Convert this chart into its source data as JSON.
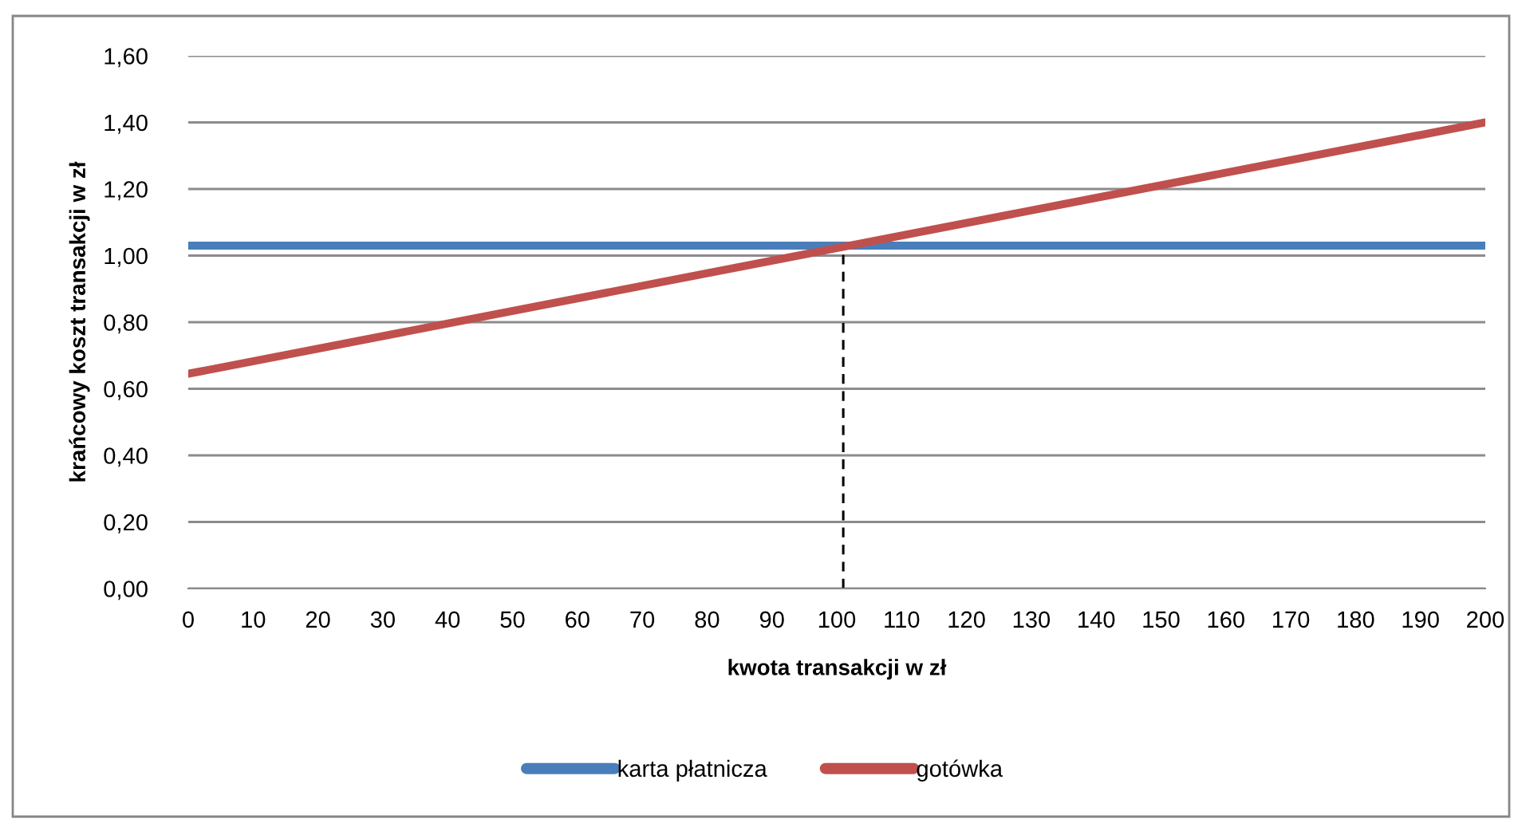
{
  "chart_data": {
    "type": "line",
    "xlabel": "kwota transakcji w zł",
    "ylabel": "krańcowy koszt transakcji w zł",
    "series": [
      {
        "name": "karta płatnicza",
        "color": "#4a7ebb",
        "x": [
          0,
          200
        ],
        "values": [
          1.03,
          1.03
        ]
      },
      {
        "name": "gotówka",
        "color": "#c0504d",
        "x": [
          0,
          200
        ],
        "values": [
          0.645,
          1.4
        ]
      },
      {
        "color": "#000000",
        "line_style": "dashed",
        "x": [
          101,
          101
        ],
        "values": [
          0,
          1.03
        ]
      }
    ],
    "xlim": [
      0,
      200
    ],
    "xticks": [
      0,
      10,
      20,
      30,
      40,
      50,
      60,
      70,
      80,
      90,
      100,
      110,
      120,
      130,
      140,
      150,
      160,
      170,
      180,
      190,
      200
    ],
    "ylim": [
      0,
      1.6
    ],
    "yticks": [
      {
        "value": 0,
        "label": "0,00"
      },
      {
        "value": 0.2,
        "label": "0,20"
      },
      {
        "value": 0.4,
        "label": "0,40"
      },
      {
        "value": 0.6,
        "label": "0,60"
      },
      {
        "value": 0.8,
        "label": "0,80"
      },
      {
        "value": 1.0,
        "label": "1,00"
      },
      {
        "value": 1.2,
        "label": "1,20"
      },
      {
        "value": 1.4,
        "label": "1,40"
      },
      {
        "value": 1.6,
        "label": "1,60"
      }
    ],
    "grid": "y",
    "legend": "bottom"
  }
}
